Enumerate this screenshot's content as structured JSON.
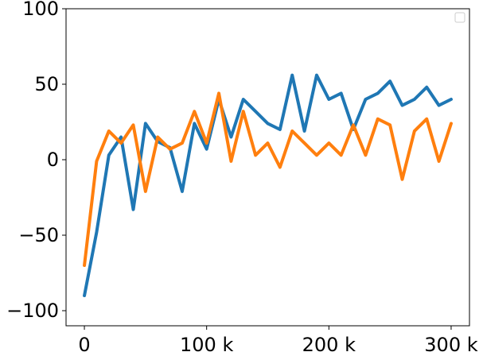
{
  "chart_data": {
    "type": "line",
    "title": "",
    "xlabel": "",
    "ylabel": "",
    "xlim": [
      -15000,
      315000
    ],
    "ylim": [
      -110,
      100
    ],
    "grid": false,
    "legend": {
      "placement": "top-right",
      "entries": []
    },
    "x_ticks": [
      {
        "value": 0,
        "label": "0"
      },
      {
        "value": 100000,
        "label": "100 k"
      },
      {
        "value": 200000,
        "label": "200 k"
      },
      {
        "value": 300000,
        "label": "300 k"
      }
    ],
    "y_ticks": [
      {
        "value": 100,
        "label": "100"
      },
      {
        "value": 50,
        "label": "50"
      },
      {
        "value": 0,
        "label": "0"
      },
      {
        "value": -50,
        "label": "−50"
      },
      {
        "value": -100,
        "label": "−100"
      }
    ],
    "x": [
      0,
      10000,
      20000,
      30000,
      40000,
      50000,
      60000,
      70000,
      80000,
      90000,
      100000,
      110000,
      120000,
      130000,
      140000,
      150000,
      160000,
      170000,
      180000,
      190000,
      200000,
      210000,
      220000,
      230000,
      240000,
      250000,
      260000,
      270000,
      280000,
      290000,
      300000
    ],
    "series": [
      {
        "color": "#1f77b4",
        "values": [
          -90,
          -48,
          3,
          15,
          -33,
          24,
          12,
          8,
          -21,
          24,
          7,
          40,
          15,
          40,
          32,
          24,
          20,
          56,
          19,
          56,
          40,
          44,
          20,
          40,
          44,
          52,
          36,
          40,
          48,
          36,
          40
        ]
      },
      {
        "color": "#ff7f0e",
        "values": [
          -70,
          -1,
          19,
          11,
          23,
          -21,
          15,
          7,
          11,
          32,
          11,
          44,
          -1,
          32,
          3,
          11,
          -5,
          19,
          11,
          3,
          11,
          3,
          23,
          3,
          27,
          23,
          -13,
          19,
          27,
          -1,
          24
        ]
      }
    ]
  }
}
